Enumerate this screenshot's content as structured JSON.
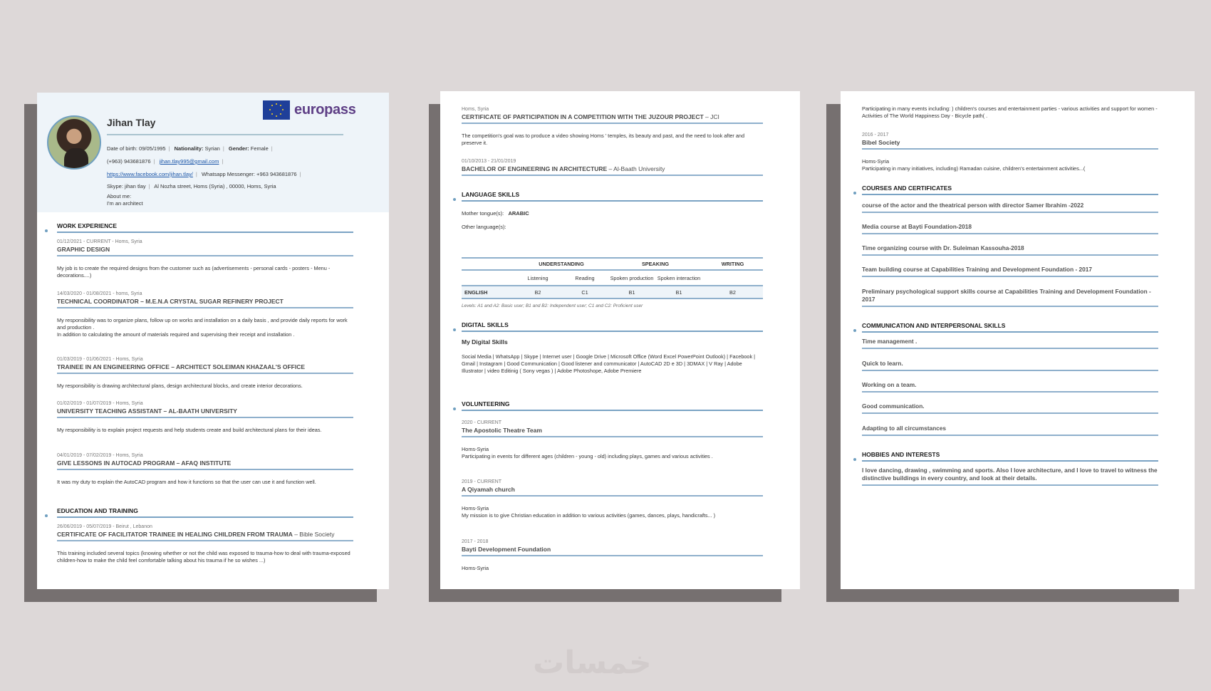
{
  "colors": {
    "background": "#ddd8d8",
    "accent_line": "#7aa3c4",
    "header_bg": "#eef4f9",
    "europass_purple": "#5e3f86",
    "europass_blue": "#1f3f99",
    "shadow": "#767070"
  },
  "watermark": "خمسات",
  "page1": {
    "logo": "europass",
    "name": "Jihan Tlay",
    "dob_label": "Date of birth:",
    "dob": "09/05/1995",
    "nationality_label": "Nationality:",
    "nationality": "Syrian",
    "gender_label": "Gender:",
    "gender": "Female",
    "phone": "(+963) 943681876",
    "email": "jihan.tlay995@gmail.com",
    "facebook": "https://www.facebook.com/jihan.tlay/",
    "whatsapp": "Whatsapp Messenger: +963 943681876",
    "skype": "Skype: jihan tlay",
    "address": "Al Nozha street, Homs (Syria) , 00000, Homs, Syria",
    "about_label": "About me:",
    "about": "I'm an architect",
    "work_heading": "WORK EXPERIENCE",
    "work": [
      {
        "date": "01/12/2021 - CURRENT - Homs, Syria",
        "title": "GRAPHIC DESIGN",
        "desc": "My job is to create the required designs from the customer such as (advertisements - personal cards - posters - Menu - decorations....)"
      },
      {
        "date": "14/03/2020 - 01/08/2021 - homs, Syria",
        "title": "TECHNICAL COORDINATOR – M.E.N.A CRYSTAL SUGAR REFINERY PROJECT",
        "desc": "My  responsibility was to organize plans, follow up on works and installation on a daily basis , and provide daily reports for work and production .",
        "desc2": "In addition to calculating the amount of materials required and supervising their receipt and installation ."
      },
      {
        "date": "01/03/2019 - 01/06/2021 - Homs, Syria",
        "title": "TRAINEE IN AN ENGINEERING OFFICE – ARCHITECT SOLEIMAN KHAZAAL'S OFFICE",
        "desc": "My responsibility is drawing architectural plans, design architectural blocks, and create interior decorations."
      },
      {
        "date": "01/02/2019 - 01/07/2019 - Homs, Syria",
        "title": "UNIVERSITY TEACHING ASSISTANT – AL-BAATH UNIVERSITY",
        "desc": "My responsibility is to explain project requests and help students create and build architectural plans for their ideas."
      },
      {
        "date": "04/01/2019 - 07/02/2019 - Homs, Syria",
        "title": "GIVE LESSONS IN AUTOCAD PROGRAM – AFAQ INSTITUTE",
        "desc": "It was my duty to explain the AutoCAD program and how it functions so that the user can use it and function well."
      }
    ],
    "edu_heading": "EDUCATION AND TRAINING",
    "edu": [
      {
        "date": "26/06/2019 - 05/07/2019 - Beirut , Lebanon",
        "title": "CERTIFICATE OF FACILITATOR TRAINEE IN HEALING CHILDREN FROM TRAUMA",
        "org": " – Bible Society",
        "desc": "This training included several topics (knowing whether or not the child was exposed to trauma-how to deal with trauma-exposed children-how to make the child feel comfortable talking about his trauma if he so wishes ...)"
      }
    ]
  },
  "page2": {
    "edu": [
      {
        "date": "Homs, Syria",
        "title": "CERTIFICATE OF PARTICIPATION IN A COMPETITION WITH THE JUZOUR PROJECT",
        "org": " – JCI",
        "desc": "The competition's goal was to produce a video showing Homs ' temples, its beauty and past, and the need to look after and preserve it."
      },
      {
        "date": "01/10/2013 - 21/01/2019",
        "title": "BACHELOR OF ENGINEERING IN ARCHITECTURE",
        "org": " – Al-Baath University"
      }
    ],
    "lang_heading": "LANGUAGE SKILLS",
    "mother_label": "Mother tongue(s):",
    "mother": "ARABIC",
    "other_label": "Other language(s):",
    "table": {
      "groups": [
        "UNDERSTANDING",
        "SPEAKING",
        "WRITING"
      ],
      "sub": [
        "Listening",
        "Reading",
        "Spoken production",
        "Spoken interaction"
      ],
      "rows": [
        {
          "lang": "ENGLISH",
          "values": [
            "B2",
            "C1",
            "B1",
            "B1",
            "B2"
          ]
        }
      ]
    },
    "levels_note": "Levels: A1 and A2: Basic user; B1 and B2: Independent user; C1 and C2: Proficient user",
    "digital_heading": "DIGITAL SKILLS",
    "digital_sub": "My Digital Skills",
    "digital_text": "Social Media  |  WhatsApp  |  Skype  |  Internet user  |  Google Drive  |  Microsoft Office (Word Excel PowerPoint Outlook)  |  Facebook  |  Gmail  |  Instagram  |  Good Communication  |  Good listener and communicator  |  AutoCAD 2D e 3D  |  3DMAX  |  V Ray  |  Adobe Illustrator  |  video Editinig ( Sony vegas )  |  Adobe Photoshope, Adobe Premiere",
    "vol_heading": "VOLUNTEERING",
    "vol": [
      {
        "date": "2020 - CURRENT",
        "title": "The Apostolic Theatre Team",
        "place": "Homs-Syria",
        "desc": "Participating in events for different ages (children - young - old) including plays, games and various activities ."
      },
      {
        "date": "2019 - CURRENT",
        "title": "A Qiyamah church",
        "place": "Homs-Syria",
        "desc": "My mission is to give Christian education in addition to various activities (games, dances, plays, handicrafts... )"
      },
      {
        "date": "2017 - 2018",
        "title": "Bayti Development Foundation",
        "place": "Homs-Syria"
      }
    ]
  },
  "page3": {
    "intro": "Participating in many events including: ) children's courses and entertainment parties - various activities and support for women - Activities of The World Happiness Day - Bicycle path( .",
    "vol": [
      {
        "date": "2016 - 2017",
        "title": "Bibel Society",
        "place": "Homs-Syria",
        "desc": "Participating in many initiatives, including)  Ramadan cuisine, children's entertainment activities...("
      }
    ],
    "courses_heading": "COURSES AND CERTIFICATES",
    "courses": [
      "course of the actor and the theatrical person with director Samer Ibrahim -2022",
      "Media course at Bayti Foundation-2018",
      "Time organizing course with Dr. Suleiman Kassouha-2018",
      "Team building course at Capabilities Training and Development Foundation - 2017",
      "Preliminary psychological support skills course at Capabilities Training and Development Foundation - 2017"
    ],
    "comm_heading": "COMMUNICATION AND INTERPERSONAL SKILLS",
    "comm": [
      "Time management .",
      "Quick to learn.",
      "Working on a team.",
      "Good communication.",
      "Adapting to all circumstances"
    ],
    "hobbies_heading": "HOBBIES AND INTERESTS",
    "hobbies": "I love dancing, drawing , swimming and sports. Also I love architecture, and I love to travel to witness the distinctive buildings in every country, and look at their details."
  }
}
